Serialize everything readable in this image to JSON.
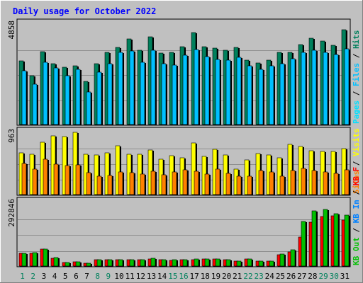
{
  "chart_data": {
    "type": "bar",
    "title": "Daily usage for October 2022",
    "categories": [
      "1",
      "2",
      "3",
      "4",
      "5",
      "6",
      "7",
      "8",
      "9",
      "10",
      "11",
      "12",
      "13",
      "14",
      "15",
      "16",
      "17",
      "18",
      "19",
      "20",
      "21",
      "22",
      "23",
      "24",
      "25",
      "26",
      "27",
      "28",
      "29",
      "30",
      "31"
    ],
    "weekend_categories": [
      "1",
      "2",
      "8",
      "9",
      "15",
      "16",
      "22",
      "23",
      "29",
      "30"
    ],
    "panels": [
      {
        "id": "hits",
        "ylabel_max": "4858",
        "ymax": 4858,
        "axis_labels": [
          "Hits",
          "Files",
          "Pages"
        ],
        "series": [
          {
            "name": "Hits",
            "color": "#00805c",
            "values": [
              3100,
              2400,
              3570,
              2960,
              2800,
              2880,
              2110,
              2960,
              3510,
              3770,
              4180,
              3630,
              4270,
              3480,
              3510,
              3810,
              4470,
              3800,
              3730,
              3630,
              3770,
              3140,
              3020,
              3140,
              3510,
              3510,
              3910,
              4200,
              4060,
              3860,
              4620
            ]
          },
          {
            "name": "Files",
            "color": "#00c0ff",
            "values": [
              2650,
              2000,
              3030,
              2760,
              2400,
              2690,
              1620,
              2550,
              2970,
              3530,
              3590,
              3060,
              3620,
              2980,
              2910,
              3370,
              3670,
              3320,
              3190,
              3140,
              3270,
              2870,
              2710,
              2890,
              2990,
              3210,
              3520,
              3610,
              3540,
              3410,
              3680
            ]
          },
          {
            "name": "Pages",
            "color": "#00e0ff",
            "values": [
              0,
              0,
              0,
              0,
              0,
              0,
              0,
              0,
              0,
              0,
              0,
              0,
              0,
              0,
              0,
              0,
              0,
              0,
              0,
              0,
              0,
              0,
              0,
              0,
              0,
              0,
              0,
              0,
              0,
              0,
              0
            ]
          }
        ]
      },
      {
        "id": "visits",
        "ylabel_max": "963",
        "ymax": 963,
        "axis_labels": [
          "Visits",
          "Sites"
        ],
        "series": [
          {
            "name": "Visits",
            "color": "#ffff00",
            "values": [
              660,
              640,
              820,
              920,
              910,
              970,
              630,
              620,
              660,
              770,
              630,
              640,
              700,
              560,
              610,
              580,
              810,
              600,
              710,
              620,
              410,
              550,
              650,
              620,
              580,
              790,
              750,
              690,
              680,
              680,
              720
            ]
          },
          {
            "name": "Sites",
            "color": "#ff8000",
            "values": [
              490,
              410,
              560,
              480,
              460,
              470,
              350,
              300,
              310,
              360,
              350,
              330,
              370,
              320,
              360,
              390,
              370,
              330,
              410,
              340,
              290,
              290,
              380,
              360,
              290,
              380,
              420,
              380,
              360,
              340,
              390
            ]
          }
        ]
      },
      {
        "id": "kbytes",
        "ylabel_max": "292846",
        "ymax": 292846,
        "axis_labels": [
          "KB F",
          "KB In",
          "KB Out"
        ],
        "series": [
          {
            "name": "KB F",
            "color": "#ff0000",
            "values": [
              61000,
              63000,
              80000,
              40000,
              20000,
              23000,
              17000,
              33000,
              33000,
              33000,
              33000,
              33000,
              37000,
              32000,
              30000,
              33000,
              33000,
              35000,
              35000,
              32000,
              25000,
              35000,
              25000,
              25000,
              55000,
              68000,
              137000,
              205000,
              231000,
              233000,
              214000
            ]
          },
          {
            "name": "KB In",
            "color": "#0080ff",
            "values": [
              0,
              0,
              0,
              0,
              0,
              0,
              0,
              0,
              0,
              0,
              0,
              0,
              0,
              0,
              0,
              0,
              0,
              0,
              0,
              0,
              0,
              0,
              0,
              0,
              0,
              0,
              0,
              0,
              0,
              0,
              0
            ]
          },
          {
            "name": "KB Out",
            "color": "#00c000",
            "values": [
              62000,
              65000,
              82000,
              41000,
              21000,
              24000,
              17000,
              34000,
              34000,
              34000,
              34000,
              34000,
              38000,
              33000,
              31000,
              34000,
              35000,
              36000,
              35000,
              32000,
              26000,
              35000,
              26000,
              25000,
              58000,
              77000,
              208000,
              256000,
              265000,
              245000,
              236000
            ]
          }
        ]
      }
    ]
  }
}
